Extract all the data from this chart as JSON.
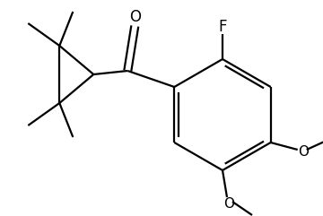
{
  "background_color": "#ffffff",
  "line_color": "#000000",
  "line_width": 1.6,
  "font_size": 10,
  "figsize": [
    3.6,
    2.41
  ],
  "dpi": 100,
  "xlim": [
    0,
    360
  ],
  "ylim": [
    0,
    241
  ]
}
